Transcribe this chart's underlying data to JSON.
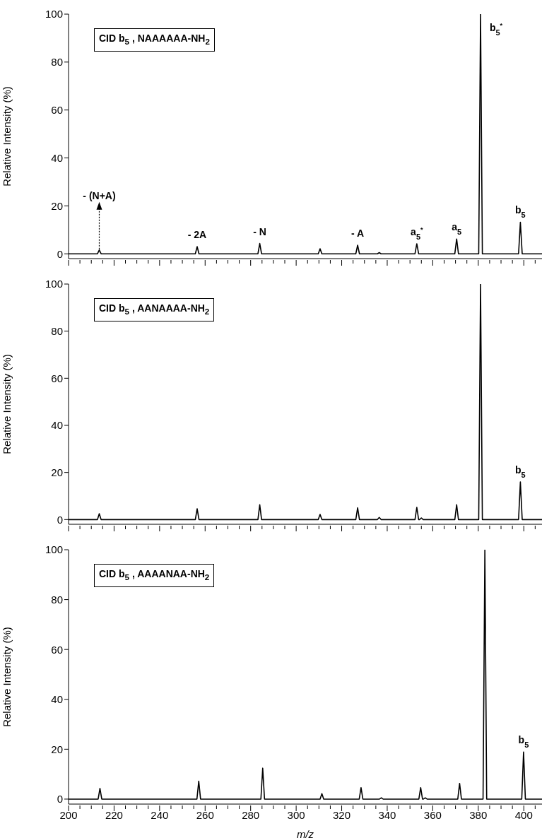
{
  "chart_data": [
    {
      "type": "line",
      "ylabel": "Relative Intensity (%)",
      "xlim": [
        200,
        408
      ],
      "ylim": [
        -2,
        100
      ],
      "tick_labels": "y",
      "yticks": [
        0,
        20,
        40,
        60,
        80,
        100
      ],
      "xticks": [
        200,
        {
          "value": 205,
          "label": null
        },
        {
          "value": 210,
          "label": null
        },
        {
          "value": 215,
          "label": null
        },
        220,
        {
          "value": 225,
          "label": null
        },
        {
          "value": 230,
          "label": null
        },
        {
          "value": 235,
          "label": null
        },
        240,
        {
          "value": 245,
          "label": null
        },
        {
          "value": 250,
          "label": null
        },
        {
          "value": 255,
          "label": null
        },
        260,
        {
          "value": 265,
          "label": null
        },
        {
          "value": 270,
          "label": null
        },
        {
          "value": 275,
          "label": null
        },
        280,
        {
          "value": 285,
          "label": null
        },
        {
          "value": 290,
          "label": null
        },
        {
          "value": 295,
          "label": null
        },
        300,
        {
          "value": 305,
          "label": null
        },
        {
          "value": 310,
          "label": null
        },
        {
          "value": 315,
          "label": null
        },
        320,
        {
          "value": 325,
          "label": null
        },
        {
          "value": 330,
          "label": null
        },
        {
          "value": 335,
          "label": null
        },
        340,
        {
          "value": 345,
          "label": null
        },
        {
          "value": 350,
          "label": null
        },
        {
          "value": 355,
          "label": null
        },
        360,
        {
          "value": 365,
          "label": null
        },
        {
          "value": 370,
          "label": null
        },
        {
          "value": 375,
          "label": null
        },
        380,
        {
          "value": 385,
          "label": null
        },
        {
          "value": 390,
          "label": null
        },
        {
          "value": 395,
          "label": null
        },
        400,
        {
          "value": 405,
          "label": null
        }
      ],
      "series": [
        {
          "color": "#000000",
          "x": [
            200,
            212.7,
            213.5,
            214.3,
            255.7,
            256.5,
            257.3,
            283.2,
            284,
            284.8,
            309.7,
            310.5,
            311.3,
            326.2,
            327,
            327.8,
            335.7,
            336.5,
            337.3,
            352.2,
            353,
            353.8,
            369.7,
            370.5,
            371.3,
            380.2,
            381,
            381.8,
            397.7,
            398.5,
            399.3,
            408
          ],
          "values": [
            0,
            0,
            1.6,
            0,
            0,
            3.0,
            0,
            0,
            4.3,
            0,
            0,
            2.1,
            0,
            0,
            3.6,
            0,
            0,
            0.5,
            0,
            0,
            4.2,
            0,
            0,
            6.2,
            0,
            0,
            100,
            0,
            0,
            13.2,
            0,
            0
          ]
        }
      ],
      "annotations": [
        "CID b$_{5}$ , NAAAAAA-NH$_{2}$",
        {
          "text": "- (N+A)",
          "x": 213.5,
          "y": 1.6
        },
        {
          "text": "- 2A",
          "x": 256.5,
          "y": 3.0
        },
        {
          "text": "- N",
          "x": 284,
          "y": 4.3
        },
        {
          "text": "- A",
          "x": 327,
          "y": 3.6
        },
        {
          "text": "a$_{5}$$^{*}$",
          "x": 353,
          "y": 4.2
        },
        {
          "text": "a$_{5}$",
          "x": 370.5,
          "y": 6.2
        },
        {
          "text": "b$_{5}$$^{*}$",
          "x": 381,
          "y": 100
        },
        {
          "text": "b$_{5}$",
          "x": 398.5,
          "y": 13.2
        }
      ]
    },
    {
      "type": "line",
      "ylabel": "Relative Intensity (%)",
      "xlim": [
        200,
        408
      ],
      "ylim": [
        -2,
        100
      ],
      "tick_labels": "y",
      "yticks": [
        0,
        20,
        40,
        60,
        80,
        100
      ],
      "xticks": [
        200,
        {
          "value": 205,
          "label": null
        },
        {
          "value": 210,
          "label": null
        },
        {
          "value": 215,
          "label": null
        },
        220,
        {
          "value": 225,
          "label": null
        },
        {
          "value": 230,
          "label": null
        },
        {
          "value": 235,
          "label": null
        },
        240,
        {
          "value": 245,
          "label": null
        },
        {
          "value": 250,
          "label": null
        },
        {
          "value": 255,
          "label": null
        },
        260,
        {
          "value": 265,
          "label": null
        },
        {
          "value": 270,
          "label": null
        },
        {
          "value": 275,
          "label": null
        },
        280,
        {
          "value": 285,
          "label": null
        },
        {
          "value": 290,
          "label": null
        },
        {
          "value": 295,
          "label": null
        },
        300,
        {
          "value": 305,
          "label": null
        },
        {
          "value": 310,
          "label": null
        },
        {
          "value": 315,
          "label": null
        },
        320,
        {
          "value": 325,
          "label": null
        },
        {
          "value": 330,
          "label": null
        },
        {
          "value": 335,
          "label": null
        },
        340,
        {
          "value": 345,
          "label": null
        },
        {
          "value": 350,
          "label": null
        },
        {
          "value": 355,
          "label": null
        },
        360,
        {
          "value": 365,
          "label": null
        },
        {
          "value": 370,
          "label": null
        },
        {
          "value": 375,
          "label": null
        },
        380,
        {
          "value": 385,
          "label": null
        },
        {
          "value": 390,
          "label": null
        },
        {
          "value": 395,
          "label": null
        },
        400,
        {
          "value": 405,
          "label": null
        }
      ],
      "series": [
        {
          "color": "#000000",
          "x": [
            200,
            212.7,
            213.5,
            214.3,
            255.7,
            256.5,
            257.3,
            283.2,
            284,
            284.8,
            309.7,
            310.5,
            311.3,
            326.2,
            327,
            327.8,
            335.7,
            336.5,
            337.3,
            352.2,
            353,
            353.8,
            354.2,
            355,
            355.8,
            369.7,
            370.5,
            371.3,
            380.2,
            381,
            381.8,
            397.7,
            398.5,
            399.3,
            408
          ],
          "values": [
            0,
            0,
            2.5,
            0,
            0,
            4.6,
            0,
            0,
            6.3,
            0,
            0,
            2.2,
            0,
            0,
            5.0,
            0,
            0,
            0.9,
            0,
            0,
            5.2,
            0,
            0,
            0.7,
            0,
            0,
            6.3,
            0,
            0,
            100,
            0,
            0,
            16.0,
            0,
            0
          ]
        }
      ],
      "annotations": [
        "CID b$_{5}$ , AANAAAA-NH$_{2}$",
        {
          "text": "b$_{5}$",
          "x": 398.5,
          "y": 16.0
        }
      ]
    },
    {
      "type": "line",
      "ylabel": "Relative Intensity (%)",
      "xlabel": "m/z",
      "xlim": [
        200,
        408
      ],
      "ylim": [
        -2,
        100
      ],
      "yticks": [
        0,
        20,
        40,
        60,
        80,
        100
      ],
      "xticks": [
        200,
        {
          "value": 205,
          "label": null
        },
        {
          "value": 210,
          "label": null
        },
        {
          "value": 215,
          "label": null
        },
        220,
        {
          "value": 225,
          "label": null
        },
        {
          "value": 230,
          "label": null
        },
        {
          "value": 235,
          "label": null
        },
        240,
        {
          "value": 245,
          "label": null
        },
        {
          "value": 250,
          "label": null
        },
        {
          "value": 255,
          "label": null
        },
        260,
        {
          "value": 265,
          "label": null
        },
        {
          "value": 270,
          "label": null
        },
        {
          "value": 275,
          "label": null
        },
        280,
        {
          "value": 285,
          "label": null
        },
        {
          "value": 290,
          "label": null
        },
        {
          "value": 295,
          "label": null
        },
        300,
        {
          "value": 305,
          "label": null
        },
        {
          "value": 310,
          "label": null
        },
        {
          "value": 315,
          "label": null
        },
        320,
        {
          "value": 325,
          "label": null
        },
        {
          "value": 330,
          "label": null
        },
        {
          "value": 335,
          "label": null
        },
        340,
        {
          "value": 345,
          "label": null
        },
        {
          "value": 350,
          "label": null
        },
        {
          "value": 355,
          "label": null
        },
        360,
        {
          "value": 365,
          "label": null
        },
        {
          "value": 370,
          "label": null
        },
        {
          "value": 375,
          "label": null
        },
        380,
        {
          "value": 385,
          "label": null
        },
        {
          "value": 390,
          "label": null
        },
        {
          "value": 395,
          "label": null
        },
        400,
        {
          "value": 405,
          "label": null
        }
      ],
      "series": [
        {
          "color": "#000000",
          "x": [
            200,
            213,
            213.8,
            214.6,
            256.4,
            257.2,
            258,
            284.5,
            285.3,
            286.1,
            310.5,
            311.3,
            312.1,
            327.7,
            328.5,
            329.3,
            336.6,
            337.4,
            338.2,
            353.9,
            354.7,
            355.5,
            355.9,
            356.7,
            357.5,
            371,
            371.8,
            372.6,
            382.1,
            382.9,
            383.7,
            399.1,
            399.9,
            400.7,
            408
          ],
          "values": [
            0,
            0,
            4.3,
            0,
            0,
            7.2,
            0,
            0,
            12.4,
            0,
            0,
            2.2,
            0,
            0,
            4.6,
            0,
            0,
            0.5,
            0,
            0,
            4.6,
            0,
            0,
            0.5,
            0,
            0,
            6.3,
            0,
            0,
            100,
            0,
            0,
            18.9,
            0,
            0
          ]
        }
      ],
      "annotations": [
        "CID b$_{5}$ , AAAANAA-NH$_{2}$",
        {
          "text": "b$_{5}$",
          "x": 399.9,
          "y": 18.9
        }
      ]
    }
  ]
}
